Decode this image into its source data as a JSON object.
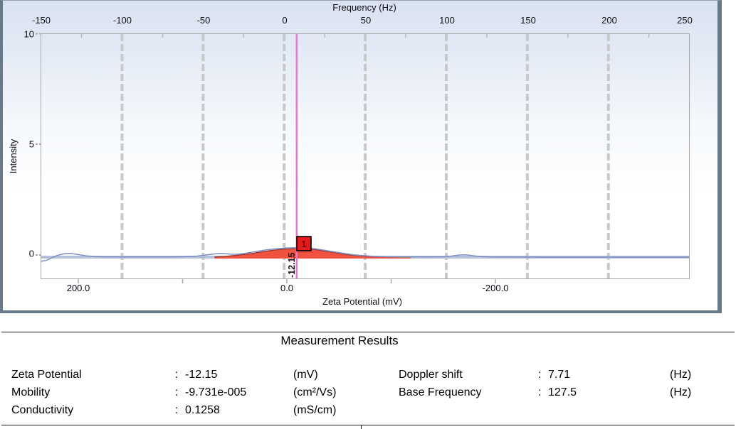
{
  "chart_data": {
    "type": "area",
    "title": "",
    "top_axis": {
      "label": "Frequency (Hz)",
      "ticks": [
        "-150",
        "-100",
        "-50",
        "0",
        "50",
        "100",
        "150",
        "200",
        "250"
      ],
      "range": [
        -150,
        250
      ]
    },
    "left_axis": {
      "label": "Intensity",
      "ticks": [
        "10",
        "5",
        "0"
      ],
      "range": [
        -1.1,
        10
      ]
    },
    "bottom_axis": {
      "label": "Zeta Potential (mV)",
      "ticks": [
        "200.0",
        "0.0",
        "-200.0"
      ],
      "reversed": true
    },
    "grid": "vertical-major",
    "series": [
      {
        "name": "intensity-spectrum",
        "type": "line",
        "color": "#7c90c4",
        "x_hz": [
          -150,
          -147,
          -144,
          -140,
          -136,
          -132,
          -127,
          -122,
          -117,
          -110,
          -70,
          -62,
          -55,
          -49,
          -44,
          -40,
          -36,
          -32,
          -28,
          -23,
          -17,
          -11,
          -5,
          1,
          7,
          13,
          19,
          25,
          31,
          37,
          43,
          49,
          55,
          62,
          70,
          80,
          98,
          103,
          108,
          112,
          116,
          121,
          126,
          160,
          250
        ],
        "y": [
          -0.29,
          -0.25,
          -0.15,
          -0.02,
          0.05,
          0.07,
          0.02,
          -0.04,
          -0.07,
          -0.09,
          -0.09,
          -0.08,
          -0.06,
          -0.01,
          0.04,
          0.07,
          0.06,
          0.03,
          0.04,
          0.09,
          0.16,
          0.23,
          0.28,
          0.31,
          0.33,
          0.32,
          0.28,
          0.21,
          0.14,
          0.07,
          0.01,
          -0.03,
          -0.06,
          -0.08,
          -0.085,
          -0.09,
          -0.09,
          -0.05,
          0.0,
          0.01,
          -0.03,
          -0.07,
          -0.09,
          -0.095,
          -0.095
        ]
      },
      {
        "name": "peak-1-area",
        "type": "area",
        "fill": "#ef5340",
        "stroke": "#9c3530",
        "x_hz": [
          -43,
          -37,
          -31,
          -25,
          -19,
          -13,
          -7,
          -1,
          5,
          11,
          17,
          23,
          29,
          35,
          41,
          47,
          53,
          59,
          65,
          72,
          78
        ],
        "y": [
          -0.09,
          -0.065,
          -0.025,
          0.02,
          0.08,
          0.15,
          0.21,
          0.26,
          0.29,
          0.3,
          0.27,
          0.2,
          0.13,
          0.06,
          0.0,
          -0.04,
          -0.065,
          -0.08,
          -0.085,
          -0.088,
          -0.09
        ]
      }
    ],
    "baseline": {
      "color": "#b5c0db"
    },
    "cursor": {
      "frequency_hz": 7.71,
      "zeta_label": "-12.15",
      "color": "#f071d9"
    },
    "peak_marker": {
      "label": "1",
      "fill": "#e81919"
    }
  },
  "results": {
    "title": "Measurement Results",
    "separator": ":",
    "rows_left": [
      {
        "label": "Zeta Potential",
        "value": "-12.15",
        "unit": "(mV)"
      },
      {
        "label": "Mobility",
        "value": "-9.731e-005",
        "unit": "(cm²/Vs)"
      },
      {
        "label": "Conductivity",
        "value": "0.1258",
        "unit": "(mS/cm)"
      }
    ],
    "rows_right": [
      {
        "label": "Doppler shift",
        "value": "7.71",
        "unit": "(Hz)"
      },
      {
        "label": "Base Frequency",
        "value": "127.5",
        "unit": "(Hz)"
      }
    ]
  }
}
